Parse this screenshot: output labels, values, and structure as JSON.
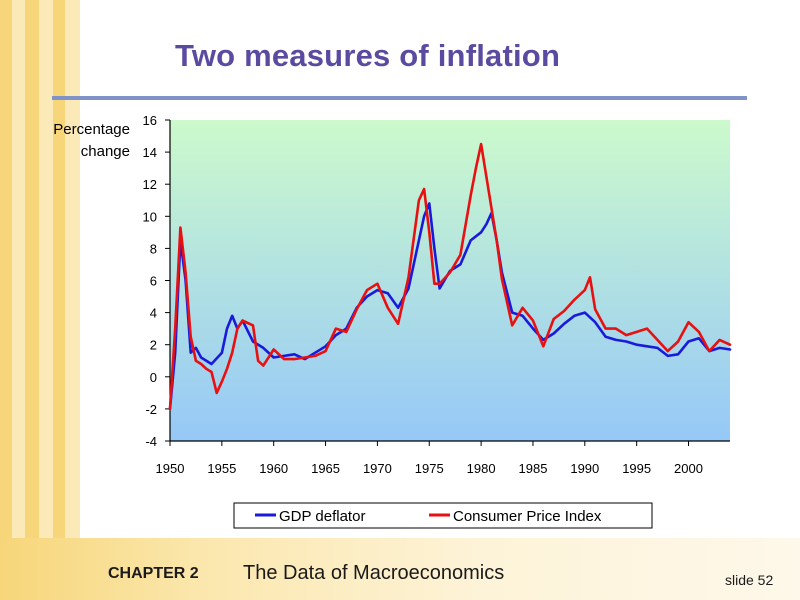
{
  "slide": {
    "title": "Two measures of inflation",
    "chapter_label": "CHAPTER 2",
    "chapter_title": "The Data of Macroeconomics",
    "slide_number": "slide 52",
    "colors": {
      "title": "#5a4ba0",
      "rule": "#7f93c9",
      "stripe": "#f7d67a"
    }
  },
  "chart_data": {
    "type": "line",
    "title": "Two measures of inflation",
    "ylabel_lines": [
      "Percentage",
      "change"
    ],
    "xlabel": "",
    "xlim": [
      1950,
      2004
    ],
    "ylim": [
      -4,
      16
    ],
    "y_ticks": [
      16,
      14,
      12,
      10,
      8,
      6,
      4,
      2,
      0,
      -2,
      -4
    ],
    "y_tick_labels": [
      "16",
      "14",
      "12",
      "10",
      "8",
      "6",
      "4",
      "2",
      "0",
      "-2",
      "-4"
    ],
    "x_ticks": [
      1950,
      1955,
      1960,
      1965,
      1970,
      1975,
      1980,
      1985,
      1990,
      1995,
      2000
    ],
    "x_tick_labels": [
      "1950",
      "1955",
      "1960",
      "1965",
      "1970",
      "1975",
      "1980",
      "1985",
      "1990",
      "1995",
      "2000"
    ],
    "legend_position": "bottom",
    "series": [
      {
        "name": "GDP deflator",
        "color": "#1a1adb",
        "x": [
          1950,
          1950.5,
          1951,
          1951.5,
          1952,
          1952.5,
          1953,
          1954,
          1955,
          1955.5,
          1956,
          1956.5,
          1957,
          1958,
          1959,
          1960,
          1961,
          1962,
          1963,
          1964,
          1965,
          1966,
          1967,
          1968,
          1969,
          1970,
          1971,
          1972,
          1973,
          1974,
          1974.5,
          1975,
          1975.5,
          1976,
          1977,
          1978,
          1979,
          1980,
          1980.5,
          1981,
          1981.5,
          1982,
          1983,
          1984,
          1985,
          1986,
          1987,
          1988,
          1989,
          1990,
          1991,
          1992,
          1993,
          1994,
          1995,
          1996,
          1997,
          1998,
          1999,
          2000,
          2001,
          2002,
          2003,
          2004
        ],
        "values": [
          -2.0,
          1.5,
          8.5,
          6.0,
          1.5,
          1.8,
          1.2,
          0.8,
          1.5,
          3.0,
          3.8,
          3.0,
          3.5,
          2.2,
          1.8,
          1.2,
          1.3,
          1.4,
          1.1,
          1.5,
          1.9,
          2.6,
          3.0,
          4.3,
          5.0,
          5.4,
          5.2,
          4.3,
          5.5,
          8.5,
          10.0,
          10.8,
          8.0,
          5.5,
          6.6,
          7.0,
          8.5,
          9.0,
          9.5,
          10.2,
          8.5,
          6.5,
          4.0,
          3.8,
          3.0,
          2.3,
          2.7,
          3.3,
          3.8,
          4.0,
          3.4,
          2.5,
          2.3,
          2.2,
          2.0,
          1.9,
          1.8,
          1.3,
          1.4,
          2.2,
          2.4,
          1.6,
          1.8,
          1.7
        ]
      },
      {
        "name": "Consumer Price Index",
        "color": "#e81010",
        "x": [
          1950,
          1950.5,
          1951,
          1951.5,
          1952,
          1952.5,
          1953,
          1953.5,
          1954,
          1954.5,
          1955,
          1955.5,
          1956,
          1956.5,
          1957,
          1958,
          1958.5,
          1959,
          1960,
          1961,
          1962,
          1963,
          1964,
          1965,
          1966,
          1967,
          1968,
          1969,
          1970,
          1971,
          1972,
          1973,
          1974,
          1974.5,
          1975,
          1975.5,
          1976,
          1977,
          1978,
          1979,
          1979.5,
          1980,
          1980.5,
          1981,
          1981.5,
          1982,
          1983,
          1984,
          1985,
          1986,
          1987,
          1988,
          1989,
          1990,
          1990.5,
          1991,
          1992,
          1993,
          1994,
          1995,
          1996,
          1997,
          1998,
          1999,
          2000,
          2001,
          2002,
          2003,
          2004
        ],
        "values": [
          -2.0,
          3.0,
          9.3,
          6.5,
          2.5,
          1.0,
          0.8,
          0.5,
          0.3,
          -1.0,
          -0.3,
          0.5,
          1.5,
          3.0,
          3.5,
          3.2,
          1.0,
          0.7,
          1.7,
          1.1,
          1.1,
          1.2,
          1.3,
          1.6,
          3.0,
          2.8,
          4.2,
          5.4,
          5.8,
          4.3,
          3.3,
          6.2,
          11.0,
          11.7,
          9.0,
          5.8,
          5.8,
          6.5,
          7.6,
          11.3,
          13.0,
          14.5,
          12.5,
          10.5,
          8.5,
          6.1,
          3.2,
          4.3,
          3.5,
          1.9,
          3.6,
          4.1,
          4.8,
          5.4,
          6.2,
          4.2,
          3.0,
          3.0,
          2.6,
          2.8,
          3.0,
          2.3,
          1.6,
          2.2,
          3.4,
          2.8,
          1.6,
          2.3,
          2.0
        ]
      }
    ]
  }
}
